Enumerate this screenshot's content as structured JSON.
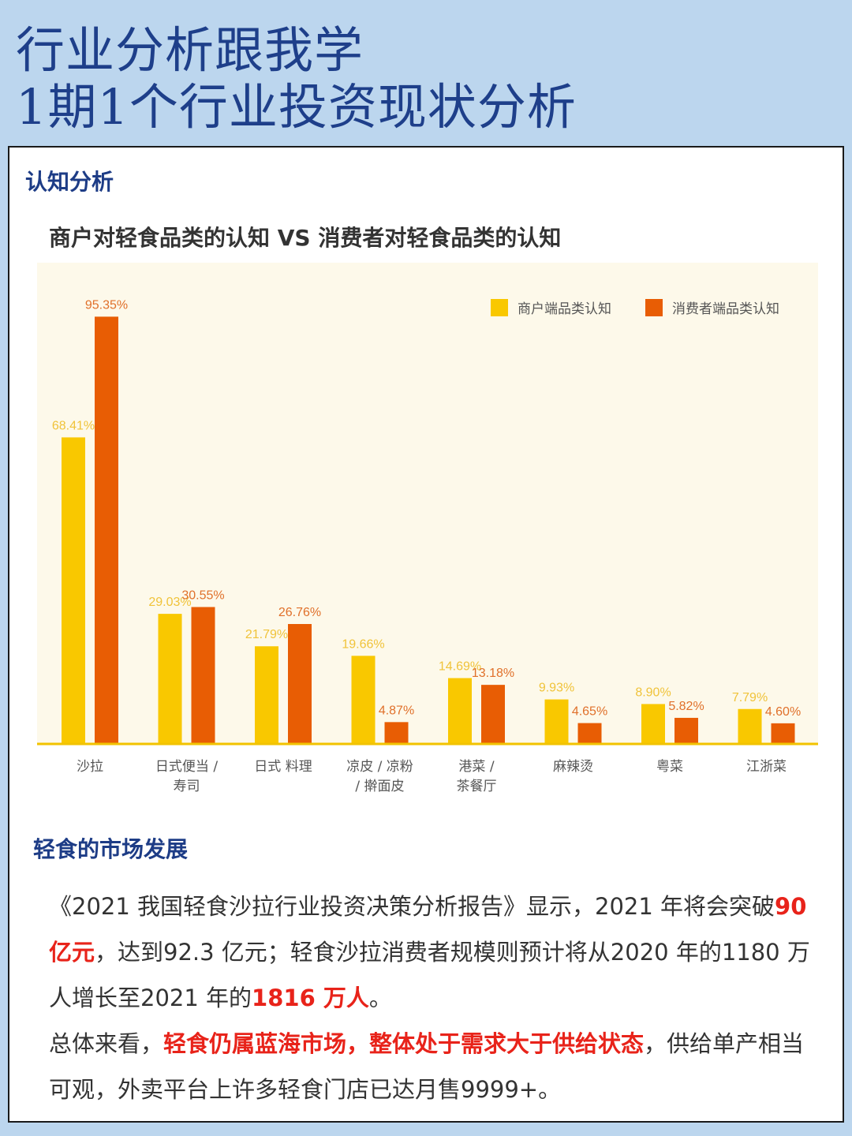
{
  "header": {
    "line1": "行业分析跟我学",
    "line2": "1期1个行业投资现状分析"
  },
  "section1_title": "认知分析",
  "chart_data": {
    "type": "bar",
    "title": "商户对轻食品类的认知 VS 消费者对轻食品类的认知",
    "categories": [
      [
        "沙拉"
      ],
      [
        "日式便当 /",
        "寿司"
      ],
      [
        "日式  料理"
      ],
      [
        "凉皮 / 凉粉",
        "/ 擀面皮"
      ],
      [
        "港菜 /",
        "茶餐厅"
      ],
      [
        "麻辣烫"
      ],
      [
        "粤菜"
      ],
      [
        "江浙菜"
      ]
    ],
    "series": [
      {
        "name": "商户端品类认知",
        "color": "#f9c800",
        "label_color": "#f0c33a",
        "values": [
          68.41,
          29.03,
          21.79,
          19.66,
          14.69,
          9.93,
          8.9,
          7.79
        ],
        "labels": [
          "68.41%",
          "29.03%",
          "21.79%",
          "19.66%",
          "14.69%",
          "9.93%",
          "8.90%",
          "7.79%"
        ]
      },
      {
        "name": "消费者端品类认知",
        "color": "#e85d04",
        "label_color": "#e0702a",
        "values": [
          95.35,
          30.55,
          26.76,
          4.87,
          13.18,
          4.65,
          5.82,
          4.6
        ],
        "labels": [
          "95.35%",
          "30.55%",
          "26.76%",
          "4.87%",
          "13.18%",
          "4.65%",
          "5.82%",
          "4.60%"
        ]
      }
    ],
    "ylim": [
      0,
      100
    ],
    "legend_position": "top-right",
    "grid": false
  },
  "section2_title": "轻食的市场发展",
  "paragraph": {
    "p1_a": "《2021 我国轻食沙拉行业投资决策分析报告》显示，2021 年将会突破",
    "p1_hl1": "90 亿元",
    "p1_b": "，达到92.3 亿元；轻食沙拉消费者规模则预计将从2020 年的1180 万人增长至2021 年的",
    "p1_hl2": "1816 万人",
    "p1_c": "。",
    "p2_a": "总体来看，",
    "p2_hl": "轻食仍属蓝海市场，整体处于需求大于供给状态",
    "p2_b": "，供给单产相当可观，外卖平台上许多轻食门店已达月售9999+。"
  }
}
